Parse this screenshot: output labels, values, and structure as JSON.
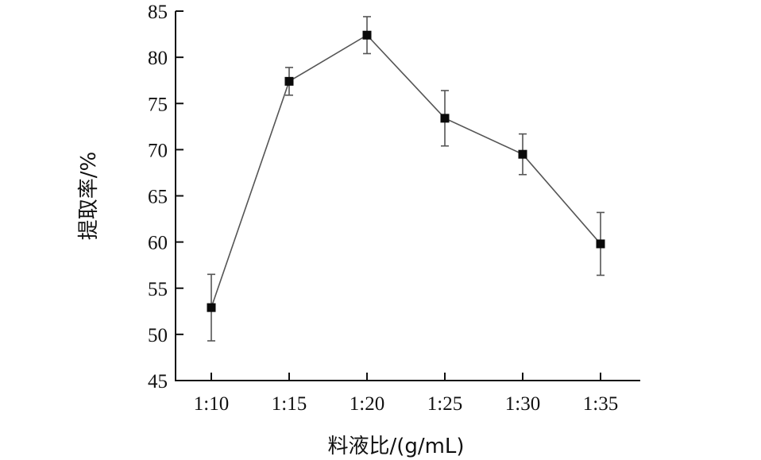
{
  "chart_data": {
    "type": "line",
    "xlabel": "料液比/(g/mL)",
    "ylabel": "提取率/%",
    "categories": [
      "1:10",
      "1:15",
      "1:20",
      "1:25",
      "1:30",
      "1:35"
    ],
    "series": [
      {
        "values": [
          52.9,
          77.4,
          82.4,
          73.4,
          69.5,
          59.8
        ],
        "errors": [
          3.6,
          1.5,
          2.0,
          3.0,
          2.2,
          3.4
        ]
      }
    ],
    "ylim": [
      45,
      85
    ],
    "yticks": [
      45,
      50,
      55,
      60,
      65,
      70,
      75,
      80,
      85
    ],
    "grid": false,
    "legend": "none",
    "colors": {
      "line": "#555555",
      "marker": "#0a0a0a",
      "axis": "#111111"
    }
  }
}
